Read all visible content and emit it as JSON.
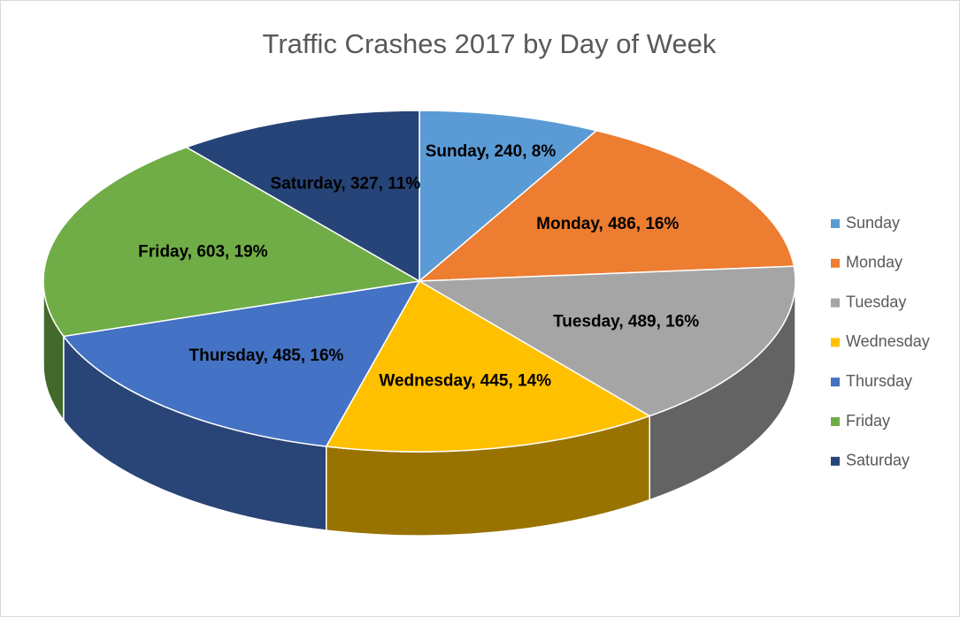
{
  "chart_data": {
    "type": "pie3d",
    "title": "Traffic Crashes 2017 by Day of Week",
    "categories": [
      "Sunday",
      "Monday",
      "Tuesday",
      "Wednesday",
      "Thursday",
      "Friday",
      "Saturday"
    ],
    "values": [
      240,
      486,
      489,
      445,
      485,
      603,
      327
    ],
    "value_labels": [
      "Sunday, 240, 8%",
      "Monday, 486, 16%",
      "Tuesday, 489, 16%",
      "Wednesday, 445, 14%",
      "Thursday, 485, 16%",
      "Friday, 603, 19%",
      "Saturday, 327, 11%"
    ],
    "colors": [
      "#5b9bd5",
      "#ed7d31",
      "#a5a5a5",
      "#ffc000",
      "#4472c4",
      "#70ad47",
      "#264478"
    ],
    "legend": "right"
  }
}
